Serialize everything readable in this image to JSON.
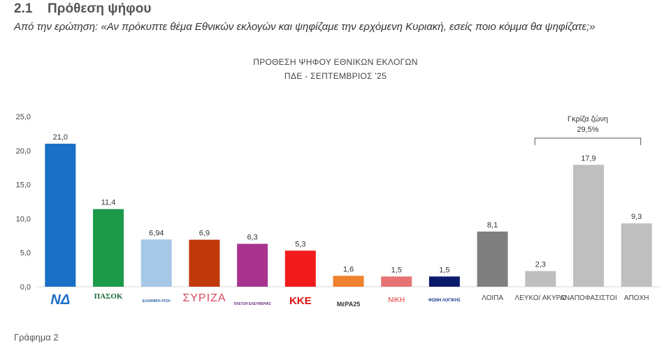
{
  "section": {
    "number": "2.1",
    "title": "Πρόθεση ψήφου"
  },
  "question": "Από την ερώτηση: «Αν πρόκυπτε θέμα Εθνικών εκλογών και ψηφίζαμε την ερχόμενη Κυριακή, εσείς ποιο κόμμα θα ψηφίζατε;»",
  "caption": "Γράφημα 2",
  "chart_data": {
    "type": "bar",
    "title": "ΠΡΟΘΕΣΗ ΨΗΦΟΥ  ΕΘΝΙΚΩΝ ΕΚΛΟΓΩΝ",
    "subtitle": "ΠΔΕ - ΣΕΠΤΕΜΒΡΙΟΣ '25",
    "xlabel": "",
    "ylabel": "",
    "ylim": [
      0,
      25
    ],
    "yticks": [
      "0,0",
      "5,0",
      "10,0",
      "15,0",
      "20,0",
      "25,0"
    ],
    "grid": false,
    "categories": [
      "ΝΔ",
      "ΠΑΣΟΚ",
      "Ελληνική Λύση",
      "ΣΥΡΙΖΑ",
      "Πλεύση Ελευθερίας",
      "ΚΚΕ",
      "ΜέΡΑ25",
      "ΝΙΚΗ",
      "Φωνή Λογικής",
      "ΛΟΙΠΑ",
      "ΛΕΥΚΟ/ ΑΚΥΡΟ",
      "ΑΝΑΠΟΦΑΣΙΣΤΟΙ",
      "ΑΠΟΧΗ"
    ],
    "values": [
      21.0,
      11.4,
      6.94,
      6.9,
      6.3,
      5.3,
      1.6,
      1.5,
      1.5,
      8.1,
      2.3,
      17.9,
      9.3
    ],
    "value_labels": [
      "21,0",
      "11,4",
      "6,94",
      "6,9",
      "6,3",
      "5,3",
      "1,6",
      "1,5",
      "1,5",
      "8,1",
      "2,3",
      "17,9",
      "9,3"
    ],
    "colors": [
      "#1a6fc6",
      "#1c9a4a",
      "#a7c7e7",
      "#c0390b",
      "#a8348f",
      "#f21b1b",
      "#f0812e",
      "#e57373",
      "#0a1a6b",
      "#7f7f7f",
      "#bfbfbf",
      "#bfbfbf",
      "#bfbfbf"
    ],
    "logo_texts": [
      "ΝΔ",
      "ΠΑΣΟΚ",
      "ΕΛΛΗΝΙΚΗ ΛΥΣΗ",
      "ΣΥΡΙΖΑ",
      "ΠΛΕΥΣΗ ΕΛΕΥΘΕΡΙΑΣ",
      "ΚΚΕ",
      "ΜέΡΑ25",
      "ΝΙΚΗ",
      "ΦΩΝΗ ΛΟΓΙΚΗΣ"
    ],
    "annotation": {
      "label": "Γκρίζα ζώνη",
      "value": "29,5%",
      "spans": [
        "ΛΕΥΚΟ/ ΑΚΥΡΟ",
        "ΑΠΟΧΗ"
      ]
    }
  }
}
